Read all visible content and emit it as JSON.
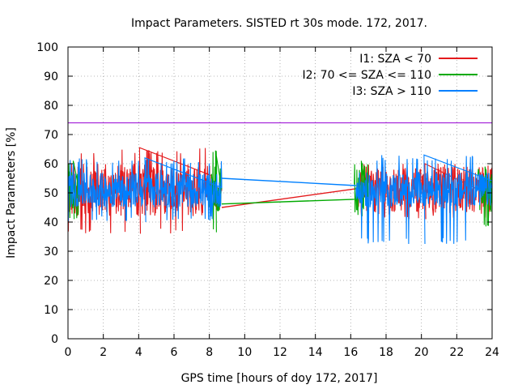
{
  "chart_data": {
    "type": "line",
    "title": "Impact Parameters. SISTED rt 30s mode. 172, 2017.",
    "xlabel": "GPS time [hours of doy 172, 2017]",
    "ylabel": "Impact Parameters [%]",
    "xlim": [
      0,
      24
    ],
    "ylim": [
      0,
      100
    ],
    "xticks": [
      0,
      2,
      4,
      6,
      8,
      10,
      12,
      14,
      16,
      18,
      20,
      22,
      24
    ],
    "yticks": [
      0,
      10,
      20,
      30,
      40,
      50,
      60,
      70,
      80,
      90,
      100
    ],
    "grid": true,
    "legend_position": "top-right",
    "reference_line": {
      "y": 74,
      "color": "#9400d3"
    },
    "gap": [
      8.7,
      16.3
    ],
    "series": [
      {
        "name": "I1: SZA < 70",
        "color": "#e41a1c",
        "segments": [
          {
            "x_start": 0.0,
            "x_end": 8.1,
            "center": 51,
            "amplitude": 9,
            "max": 65.5,
            "min": 36
          },
          {
            "x_start": 8.1,
            "x_end": 8.7,
            "center": 48,
            "amplitude": 4,
            "max": 52,
            "min": 44
          },
          {
            "x_start": 16.4,
            "x_end": 24.0,
            "center": 51,
            "amplitude": 8,
            "max": 60,
            "min": 41
          }
        ],
        "bridge": [
          [
            8.7,
            45.0
          ],
          [
            16.4,
            51.5
          ]
        ]
      },
      {
        "name": "I2: 70 <= SZA <= 110",
        "color": "#00aa00",
        "segments": [
          {
            "x_start": 0.0,
            "x_end": 0.6,
            "center": 51,
            "amplitude": 7,
            "max": 61,
            "min": 41
          },
          {
            "x_start": 8.0,
            "x_end": 8.7,
            "center": 51,
            "amplitude": 9,
            "max": 64.5,
            "min": 36.5
          },
          {
            "x_start": 16.2,
            "x_end": 17.0,
            "center": 51,
            "amplitude": 7,
            "max": 61,
            "min": 42
          },
          {
            "x_start": 23.2,
            "x_end": 24.0,
            "center": 51,
            "amplitude": 8,
            "max": 59,
            "min": 38.5
          }
        ],
        "bridge": [
          [
            8.7,
            46.2
          ],
          [
            16.2,
            47.8
          ]
        ]
      },
      {
        "name": "I3: SZA > 110",
        "color": "#0080ff",
        "segments": [
          {
            "x_start": 0.0,
            "x_end": 8.7,
            "center": 51,
            "amplitude": 6,
            "max": 62,
            "min": 40
          },
          {
            "x_start": 16.3,
            "x_end": 24.0,
            "center": 51,
            "amplitude": 6,
            "max": 63,
            "min": 32.5
          }
        ],
        "bridge": [
          [
            8.7,
            55.0
          ],
          [
            16.3,
            52.5
          ]
        ]
      }
    ]
  }
}
